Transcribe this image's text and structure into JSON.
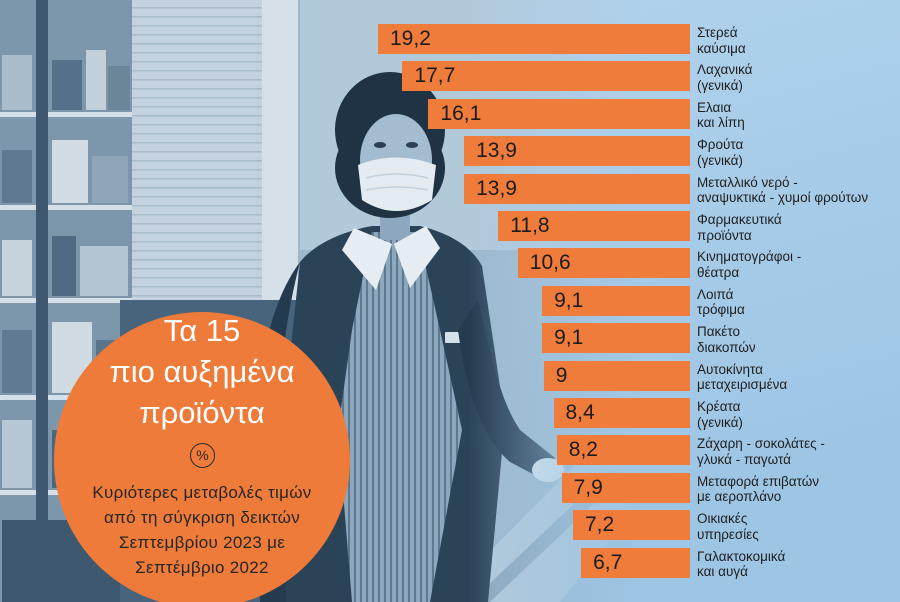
{
  "colors": {
    "bar": "#ef7c3a",
    "circle": "#ee7b3a",
    "background": "#a9cce8",
    "label_text": "#1f1f1f",
    "title_text": "#ffffff"
  },
  "chart_data": {
    "type": "bar",
    "orientation": "horizontal",
    "title": "Τα 15\nπιο αυξημένα\nπροϊόντα",
    "unit": "%",
    "subtitle": "Κυριότερες μεταβολές τιμών\nαπό τη σύγκριση δεικτών\nΣεπτεμβρίου 2023 με\nΣεπτέμβριο 2022",
    "categories": [
      "Στερεά\nκαύσιμα",
      "Λαχανικά\n(γενικά)",
      "Ελαια\nκαι λίπη",
      "Φρούτα\n(γενικά)",
      "Μεταλλικό νερό -\nαναψυκτικά - χυμοί φρούτων",
      "Φαρμακευτικά\nπροϊόντα",
      "Κινηματογράφοι -\nθέατρα",
      "Λοιπά\nτρόφιμα",
      "Πακέτο\nδιακοπών",
      "Αυτοκίνητα\nμεταχειρισμένα",
      "Κρέατα\n(γενικά)",
      "Ζάχαρη - σοκολάτες -\nγλυκά - παγωτά",
      "Μεταφορά επιβατών\nμε αεροπλάνο",
      "Οικιακές\nυπηρεσίες",
      "Γαλακτοκομικά\nκαι αυγά"
    ],
    "values": [
      19.2,
      17.7,
      16.1,
      13.9,
      13.9,
      11.8,
      10.6,
      9.1,
      9.1,
      9,
      8.4,
      8.2,
      7.9,
      7.2,
      6.7
    ],
    "data_labels": [
      "19,2",
      "17,7",
      "16,1",
      "13,9",
      "13,9",
      "11,8",
      "10,6",
      "9,1",
      "9,1",
      "9",
      "8,4",
      "8,2",
      "7,9",
      "7,2",
      "6,7"
    ],
    "grid": false,
    "legend": "none"
  }
}
